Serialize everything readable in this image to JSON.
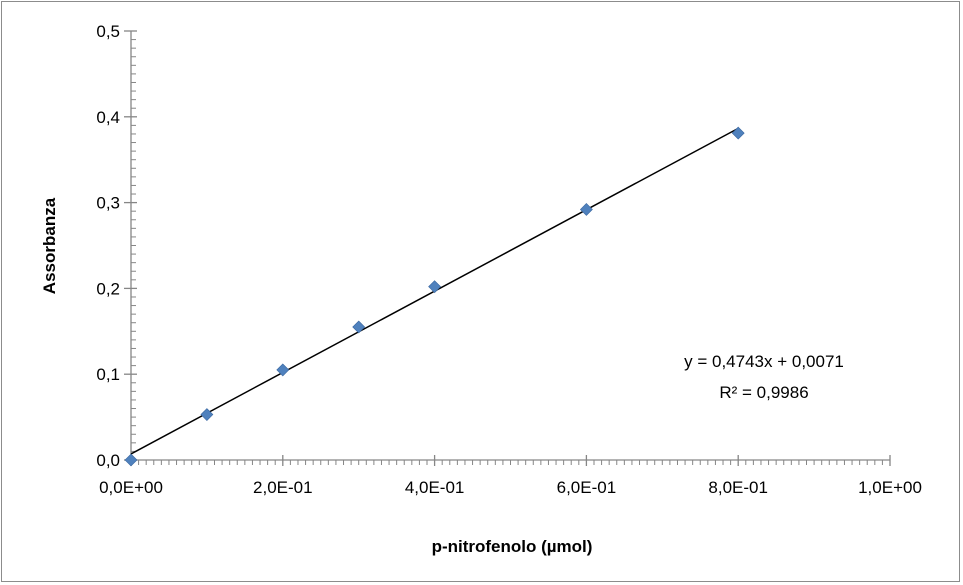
{
  "chart_data": {
    "type": "scatter",
    "title": "",
    "xlabel": "p-nitrofenolo (µmol)",
    "ylabel": "Assorbanza",
    "xlim": [
      0,
      1.0
    ],
    "ylim": [
      0,
      0.5
    ],
    "x_ticks": [
      0,
      0.2,
      0.4,
      0.6,
      0.8,
      1.0
    ],
    "x_tick_labels": [
      "0,0E+00",
      "2,0E-01",
      "4,0E-01",
      "6,0E-01",
      "8,0E-01",
      "1,0E+00"
    ],
    "y_ticks": [
      0,
      0.1,
      0.2,
      0.3,
      0.4,
      0.5
    ],
    "y_tick_labels": [
      "0,0",
      "0,1",
      "0,2",
      "0,3",
      "0,4",
      "0,5"
    ],
    "grid": false,
    "legend": "none",
    "series": [
      {
        "marker": "diamond",
        "color": "#4f81bd",
        "x": [
          0,
          0.1,
          0.2,
          0.3,
          0.4,
          0.6,
          0.8
        ],
        "y": [
          0,
          0.053,
          0.105,
          0.155,
          0.202,
          0.292,
          0.381
        ]
      }
    ],
    "trendline": {
      "type": "linear",
      "slope": 0.4743,
      "intercept": 0.0071,
      "x_range": [
        0,
        0.8
      ],
      "color": "#000000"
    },
    "annotations": {
      "equation": "y = 0,4743x + 0,0071",
      "r_squared": "R² = 0,9986"
    }
  }
}
